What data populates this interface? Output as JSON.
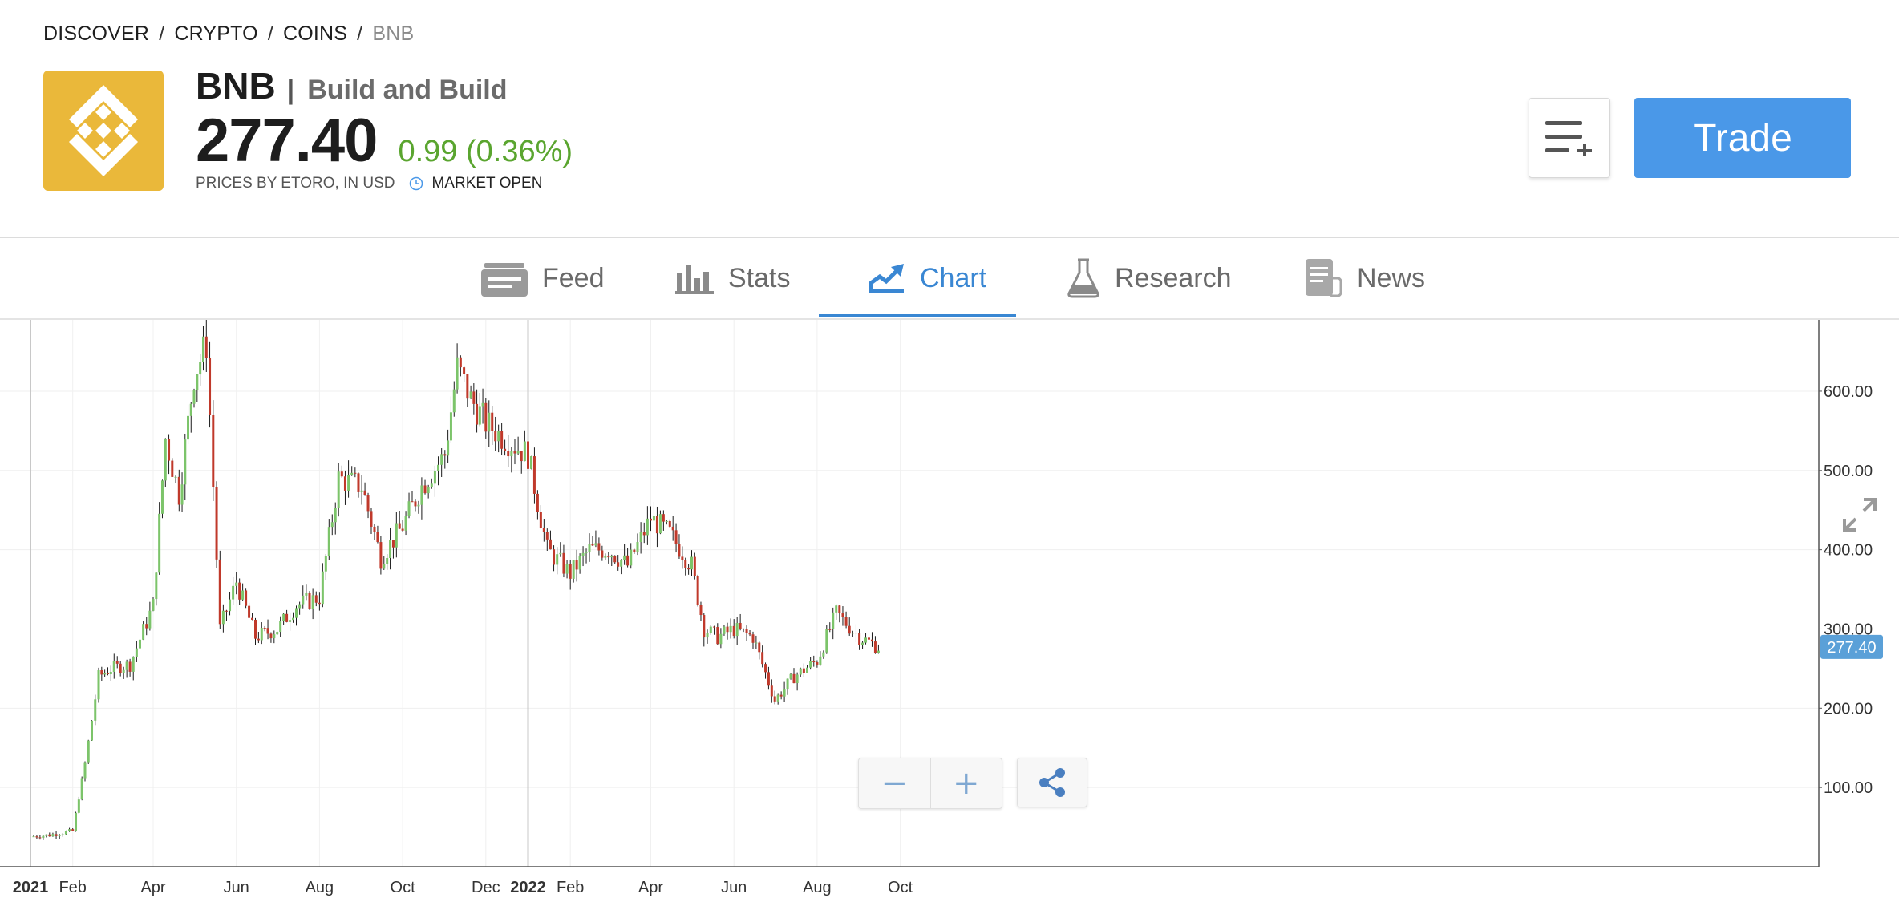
{
  "breadcrumb": {
    "items": [
      "DISCOVER",
      "CRYPTO",
      "COINS"
    ],
    "current": "BNB"
  },
  "instrument": {
    "ticker": "BNB",
    "name": "Build and Build",
    "price": "277.40",
    "change": "0.99 (0.36%)",
    "source": "PRICES BY ETORO, IN USD",
    "market_status": "MARKET OPEN",
    "logo_color": "#eab83a",
    "change_color": "#5aa52f"
  },
  "actions": {
    "watchlist_icon": "add-to-list-icon",
    "trade_label": "Trade",
    "trade_color": "#4a98e8"
  },
  "tabs": [
    {
      "label": "Feed",
      "icon": "feed-icon"
    },
    {
      "label": "Stats",
      "icon": "bar-chart-icon"
    },
    {
      "label": "Chart",
      "icon": "trend-up-icon",
      "active": true
    },
    {
      "label": "Research",
      "icon": "flask-icon"
    },
    {
      "label": "News",
      "icon": "newspaper-icon"
    }
  ],
  "chart_controls": {
    "zoom_out": "−",
    "zoom_in": "+",
    "share_icon": "share-icon"
  },
  "chart_data": {
    "type": "candlestick",
    "x_ticks": [
      "2021",
      "Feb",
      "Apr",
      "Jun",
      "Aug",
      "Oct",
      "Dec",
      "2022",
      "Feb",
      "Apr",
      "Jun",
      "Aug",
      "Oct"
    ],
    "y_ticks": [
      "100.00",
      "200.00",
      "300.00",
      "400.00",
      "500.00",
      "600.00"
    ],
    "ylim": [
      0,
      690
    ],
    "last_price_label": "277.40",
    "last_price": 277.4,
    "up_color": "#7cc46a",
    "down_color": "#c0392b",
    "grid": true,
    "x": [
      "2021-01-01",
      "2021-01-15",
      "2021-02-01",
      "2021-02-10",
      "2021-02-20",
      "2021-03-01",
      "2021-03-15",
      "2021-04-01",
      "2021-04-10",
      "2021-04-20",
      "2021-05-01",
      "2021-05-10",
      "2021-05-20",
      "2021-06-01",
      "2021-06-15",
      "2021-07-01",
      "2021-07-15",
      "2021-08-01",
      "2021-08-15",
      "2021-09-01",
      "2021-09-15",
      "2021-10-01",
      "2021-10-15",
      "2021-11-01",
      "2021-11-10",
      "2021-11-20",
      "2021-12-01",
      "2021-12-15",
      "2022-01-01",
      "2022-01-15",
      "2022-02-01",
      "2022-02-15",
      "2022-03-01",
      "2022-03-15",
      "2022-04-01",
      "2022-04-15",
      "2022-05-01",
      "2022-05-10",
      "2022-05-20",
      "2022-06-01",
      "2022-06-15",
      "2022-07-01",
      "2022-07-15",
      "2022-08-01",
      "2022-08-15",
      "2022-09-01",
      "2022-09-15"
    ],
    "values": [
      38,
      40,
      45,
      130,
      240,
      250,
      255,
      330,
      540,
      470,
      620,
      660,
      300,
      360,
      290,
      300,
      330,
      340,
      490,
      480,
      390,
      430,
      480,
      520,
      630,
      590,
      560,
      540,
      520,
      400,
      370,
      400,
      400,
      380,
      440,
      420,
      380,
      300,
      290,
      300,
      290,
      210,
      240,
      260,
      320,
      290,
      277.4
    ]
  }
}
